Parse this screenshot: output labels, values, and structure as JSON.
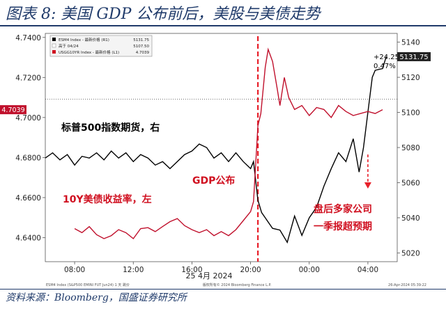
{
  "header": {
    "title": "图表 8:  美国 GDP 公布前后，美股与美债走势"
  },
  "footer": {
    "source": "资料来源：Bloomberg，国盛证券研究所",
    "left_fine_print": "ESM4 Index (S&P500 EMINI FUT  Jun24) 1 天  跳价",
    "center_fine_print": "版权所有© 2024 Bloomberg Finance L.P.",
    "right_fine_print": "26-Apr-2024 05:39:22"
  },
  "chart_data": {
    "type": "line",
    "title": "",
    "x_tick_labels": [
      "08:00",
      "12:00",
      "16:00",
      "20:00",
      "00:00",
      "04:00"
    ],
    "x_date_label": "25 4月 2024",
    "left_axis": {
      "ylim": [
        4.628,
        4.742
      ],
      "ticks": [
        "4.6400",
        "4.6600",
        "4.6800",
        "4.7000",
        "4.7200",
        "4.7400"
      ]
    },
    "right_axis": {
      "ylim": [
        5015,
        5145
      ],
      "ticks": [
        "5020",
        "5040",
        "5060",
        "5080",
        "5100",
        "5120",
        "5140"
      ]
    },
    "legend": {
      "placement": "top-left",
      "entries": [
        {
          "label": "ESM4 Index - 最新价格 (R1)",
          "value": "5131.75",
          "color": "#000000"
        },
        {
          "label": "高于 04/24",
          "value": "5107.50",
          "color": "#ffffff"
        },
        {
          "label": "USGG10YR Index - 最新价格 (L1)",
          "value": "4.7039",
          "color": "#d01020"
        }
      ]
    },
    "reference_line_label": "高于 04/24",
    "reference_line_value": 5107.5,
    "series": [
      {
        "name": "标普500指数期货，右",
        "axis": "right",
        "color": "#000000",
        "x": [
          6.0,
          6.5,
          7.0,
          7.5,
          8.0,
          8.5,
          9.0,
          9.5,
          10.0,
          10.5,
          11.0,
          11.5,
          12.0,
          12.5,
          13.0,
          13.5,
          14.0,
          14.5,
          15.0,
          15.5,
          16.0,
          16.5,
          17.0,
          17.5,
          18.0,
          18.5,
          19.0,
          19.5,
          20.0,
          20.2,
          20.5,
          20.75,
          21.0,
          21.5,
          22.0,
          22.5,
          23.0,
          23.5,
          24.0,
          24.5,
          25.0,
          25.5,
          26.0,
          26.5,
          27.0,
          27.4,
          27.7,
          28.0,
          28.3,
          28.5,
          29.0,
          29.25
        ],
        "values": [
          5074,
          5077,
          5073,
          5076,
          5070,
          5075,
          5074,
          5077,
          5073,
          5078,
          5074,
          5077,
          5072,
          5076,
          5074,
          5070,
          5072,
          5068,
          5072,
          5076,
          5078,
          5082,
          5080,
          5074,
          5077,
          5072,
          5077,
          5072,
          5068,
          5072,
          5050,
          5043,
          5040,
          5034,
          5033,
          5026,
          5041,
          5030,
          5040,
          5046,
          5058,
          5068,
          5077,
          5072,
          5085,
          5066,
          5080,
          5100,
          5120,
          5124,
          5125,
          5131.75
        ]
      },
      {
        "name": "10Y美债收益率，左",
        "axis": "left",
        "color": "#c0102c",
        "x": [
          8.0,
          8.5,
          9.0,
          9.5,
          10.0,
          10.5,
          11.0,
          11.5,
          12.0,
          12.5,
          13.0,
          13.5,
          14.0,
          14.5,
          15.0,
          15.5,
          16.0,
          16.5,
          17.0,
          17.5,
          18.0,
          18.5,
          19.0,
          19.5,
          20.0,
          20.2,
          20.5,
          20.7,
          21.0,
          21.2,
          21.5,
          21.8,
          22.0,
          22.3,
          22.6,
          23.0,
          23.5,
          24.0,
          24.5,
          25.0,
          25.5,
          26.0,
          26.5,
          27.0,
          27.5,
          28.0,
          28.5,
          29.0
        ],
        "values": [
          4.6445,
          4.6425,
          4.6455,
          4.6415,
          4.6395,
          4.641,
          4.644,
          4.6425,
          4.6395,
          4.6445,
          4.645,
          4.643,
          4.6455,
          4.648,
          4.6495,
          4.646,
          4.644,
          4.6425,
          4.644,
          4.641,
          4.643,
          4.641,
          4.644,
          4.6485,
          4.653,
          4.658,
          4.696,
          4.702,
          4.725,
          4.734,
          4.728,
          4.715,
          4.706,
          4.72,
          4.71,
          4.704,
          4.706,
          4.701,
          4.705,
          4.704,
          4.7,
          4.706,
          4.703,
          4.701,
          4.702,
          4.703,
          4.702,
          4.7039
        ]
      }
    ],
    "annotations": {
      "sp_label": "标普500指数期货，右",
      "ust_label": "10Y美债收益率，左",
      "gdp_label": "GDP公布",
      "after_label_line1": "盘后多家公司",
      "after_label_line2": "一季报超预期",
      "gdp_release_x": 20.5,
      "earnings_arrow_x": 28.0,
      "change_points": "+24.25",
      "change_pct": "0.47%",
      "sp_last_tag": "5131.75",
      "ust_last_tag": "4.7039"
    }
  }
}
